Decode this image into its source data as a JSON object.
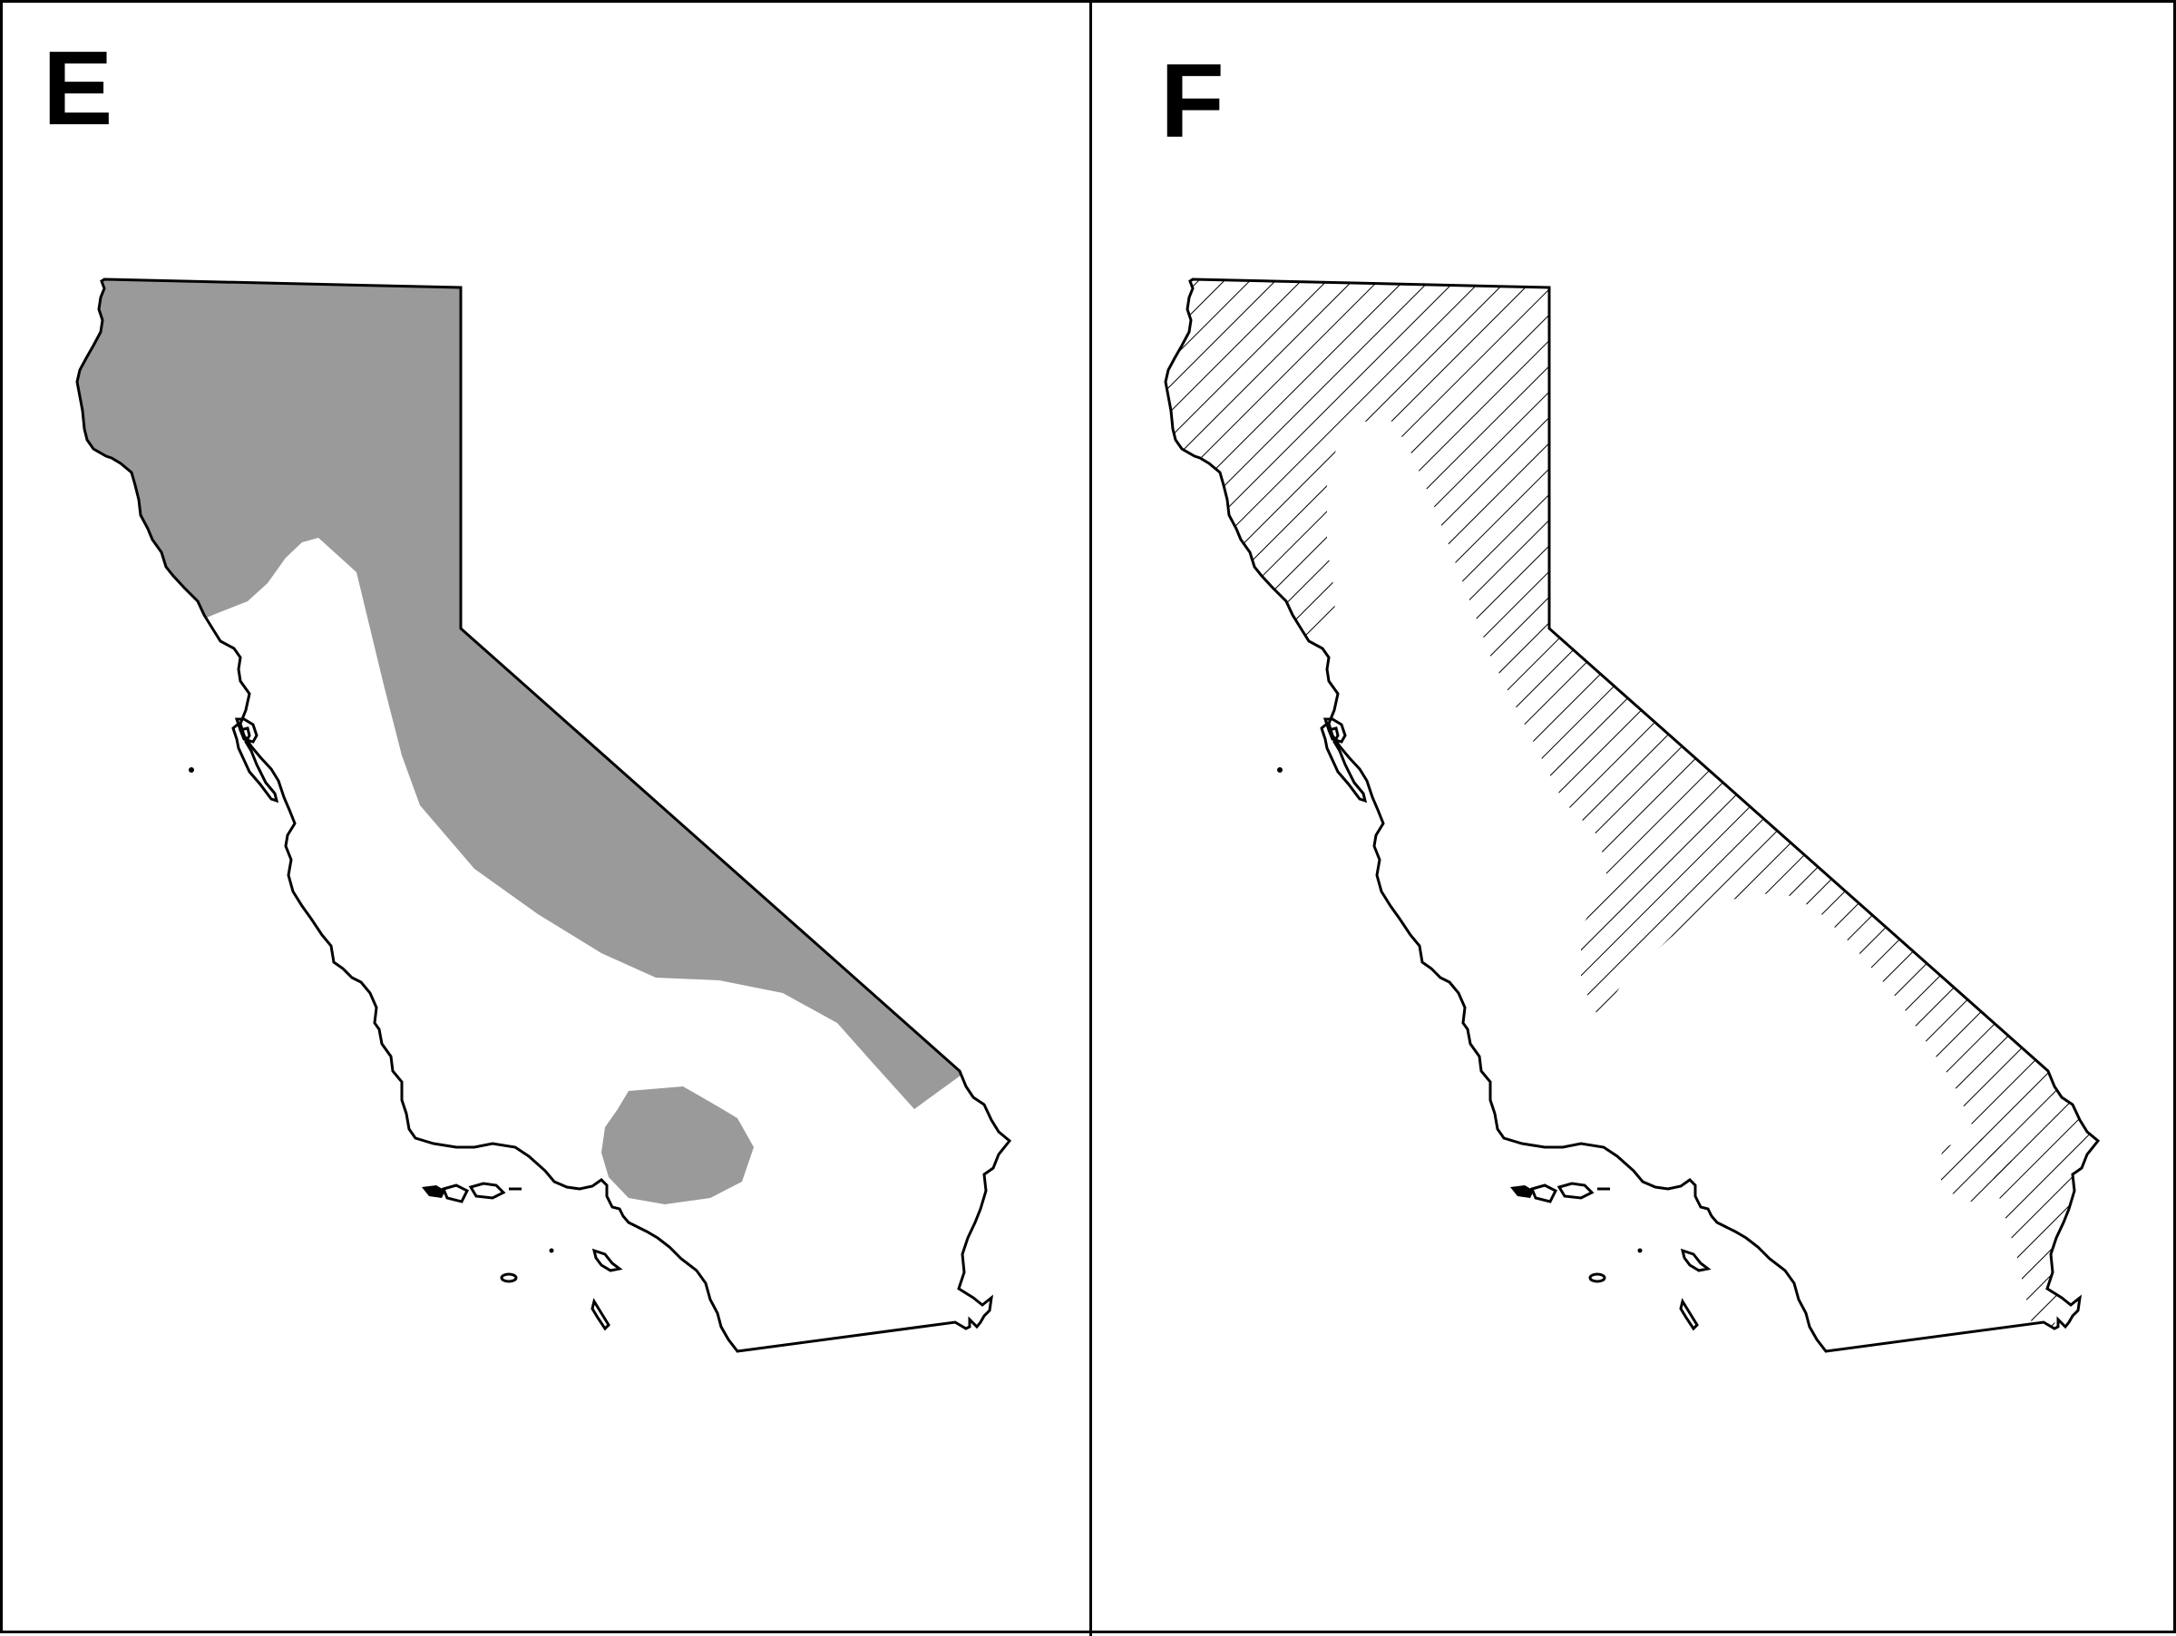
{
  "panels": [
    {
      "id": "E",
      "letter": "E",
      "fill_style": "solid",
      "fill_color": "#9a9a9a"
    },
    {
      "id": "F",
      "letter": "F",
      "fill_style": "hatched",
      "hatch_color": "#000000"
    }
  ],
  "colors": {
    "background": "#ffffff",
    "outline": "#000000",
    "shade": "#9a9a9a"
  }
}
